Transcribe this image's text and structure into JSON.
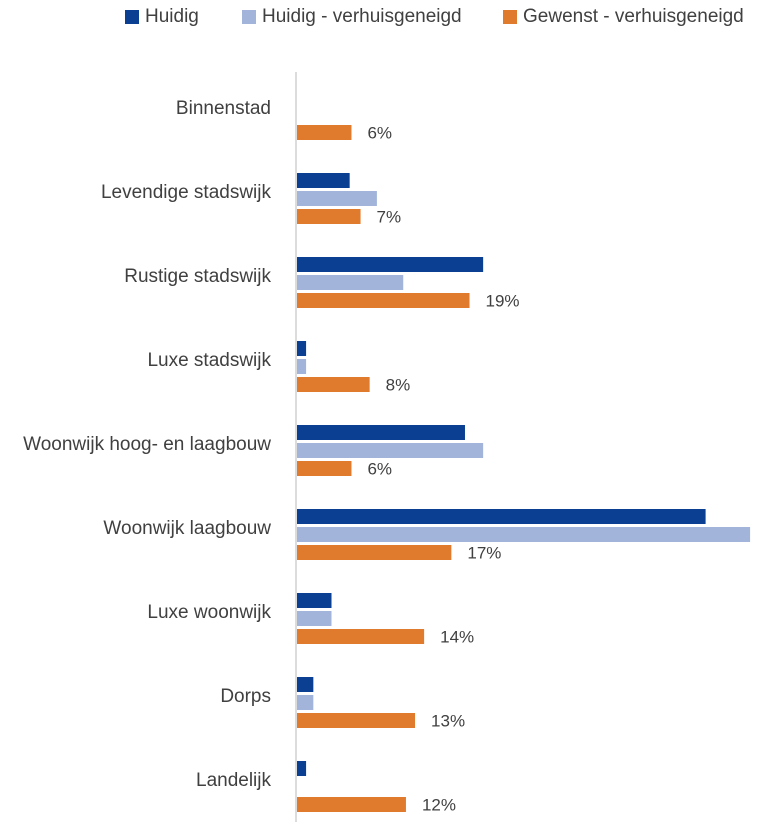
{
  "chart_data": {
    "type": "bar",
    "orientation": "horizontal",
    "categories": [
      "Binnenstad",
      "Levendige stadswijk",
      "Rustige stadswijk",
      "Luxe stadswijk",
      "Woonwijk hoog- en laagbouw",
      "Woonwijk laagbouw",
      "Luxe woonwijk",
      "Dorps",
      "Landelijk"
    ],
    "series": [
      {
        "name": "Huidig",
        "color": "#0b3f91",
        "values": [
          0,
          5.8,
          20.5,
          1.0,
          18.5,
          45.0,
          3.8,
          1.8,
          1.0
        ]
      },
      {
        "name": "Huidig - verhuisgeneigd",
        "color": "#a2b4d9",
        "values": [
          0,
          8.8,
          11.7,
          1.0,
          20.5,
          49.9,
          3.8,
          1.8,
          0
        ]
      },
      {
        "name": "Gewenst - verhuisgeneigd",
        "color": "#e07b2e",
        "values": [
          6,
          7,
          19,
          8,
          6,
          17,
          14,
          13,
          12
        ],
        "data_labels": [
          "6%",
          "7%",
          "19%",
          "8%",
          "6%",
          "17%",
          "14%",
          "13%",
          "12%"
        ]
      }
    ],
    "title": "",
    "xlabel": "",
    "ylabel": "",
    "legend_position": "top",
    "grid": false
  }
}
